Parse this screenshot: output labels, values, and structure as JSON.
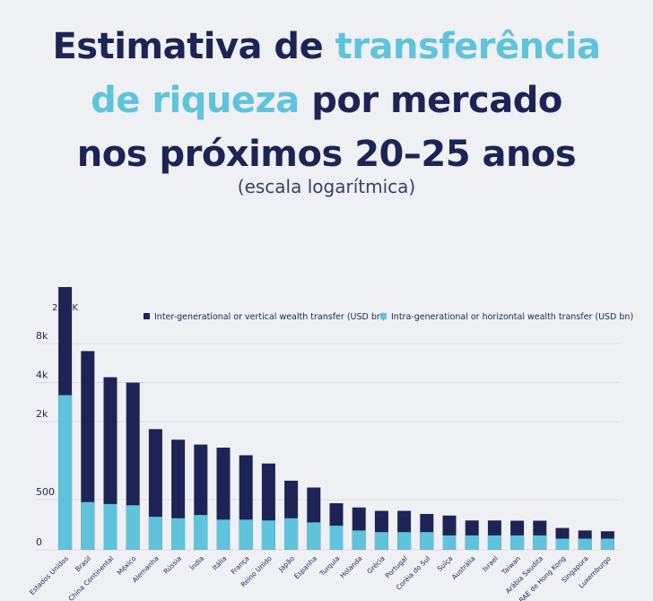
{
  "title": {
    "part1": "Estimativa de ",
    "part2": "transferência",
    "part3": "de riqueza",
    "part4": " por mercado",
    "line3": "nos próximos 20–25 anos"
  },
  "subtitle": "(escala logarítmica)",
  "colors": {
    "inter": "#1d2455",
    "intra": "#5fc3dc",
    "grid": "#d9dbe2",
    "title_highlight": "#5fc3dc"
  },
  "chart_data": {
    "type": "bar",
    "scale": "log",
    "grid": true,
    "legend_position": "top",
    "yticks": [
      {
        "label": "0",
        "value": 0
      },
      {
        "label": "500",
        "value": 500
      },
      {
        "label": "2k",
        "value": 2000
      },
      {
        "label": "4k",
        "value": 4000
      },
      {
        "label": "8k",
        "value": 8000
      }
    ],
    "top_label": "25.9K",
    "categories": [
      "Estados Unidos",
      "Brasil",
      "China Continental",
      "México",
      "Alemanha",
      "Rússia",
      "Índia",
      "Itália",
      "França",
      "Reino Unido",
      "Japão",
      "Espanha",
      "Turquia",
      "Holanda",
      "Grécia",
      "Portugal",
      "Coréia do Sul",
      "Suíça",
      "Austrália",
      "Israel",
      "Taiwan",
      "Arábia Saudita",
      "RAE de Hong Kong",
      "Singapura",
      "Luxemburgo"
    ],
    "series": [
      {
        "name": "Inter-generational or vertical wealth transfer (USD bn)",
        "values": [
          25900,
          7000,
          4400,
          4000,
          1750,
          1450,
          1330,
          1260,
          1100,
          950,
          700,
          620,
          320,
          190,
          125,
          125,
          85,
          70,
          38,
          38,
          37,
          37,
          15,
          11,
          10
        ]
      },
      {
        "name": "Intra-generational or horizontal wealth transfer (USD bn)",
        "values": [
          3200,
          370,
          290,
          250,
          60,
          50,
          75,
          42,
          42,
          38,
          50,
          30,
          20,
          11,
          9,
          9,
          9,
          6,
          6,
          6,
          6,
          6,
          4,
          4,
          4
        ]
      }
    ]
  }
}
